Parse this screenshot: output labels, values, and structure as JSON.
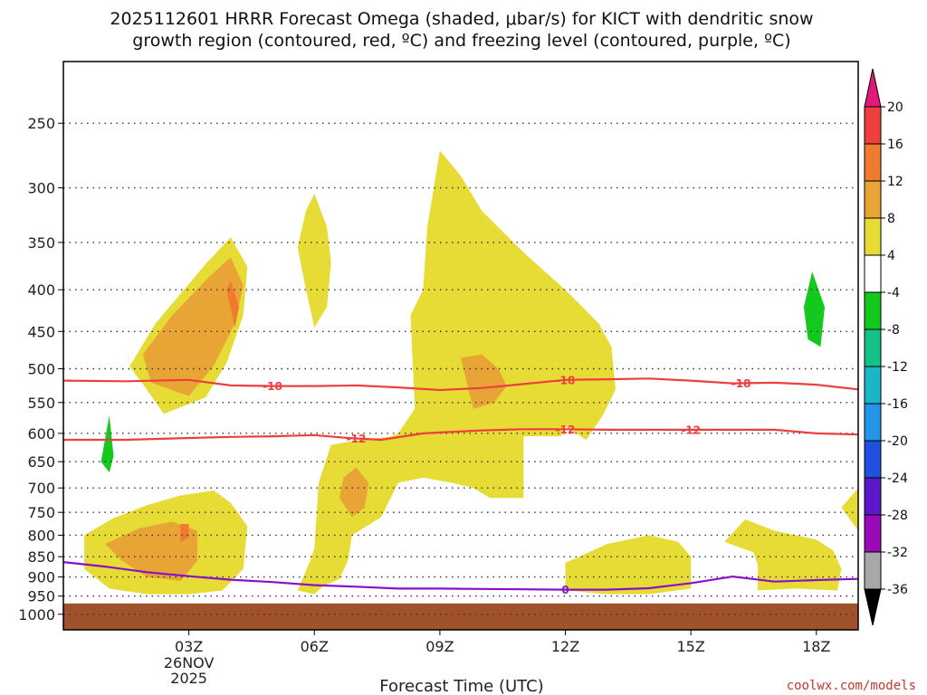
{
  "chart_data": {
    "type": "contour-timeheight",
    "title_line1": "2025112601 HRRR Forecast Omega (shaded, μbar/s) for KICT with dendritic snow",
    "title_line2": "growth region (contoured, red, ºC) and freezing level (contoured, purple, ºC)",
    "xlabel": "Forecast Time (UTC)",
    "credit": "coolwx.com/models",
    "x_range_hours": [
      0.0,
      19.0
    ],
    "x_ticks": [
      {
        "hour": 3,
        "label": "03Z",
        "sub1": "26NOV",
        "sub2": "2025"
      },
      {
        "hour": 6,
        "label": "06Z"
      },
      {
        "hour": 9,
        "label": "09Z"
      },
      {
        "hour": 12,
        "label": "12Z"
      },
      {
        "hour": 15,
        "label": "15Z"
      },
      {
        "hour": 18,
        "label": "18Z"
      }
    ],
    "y_ticks_hpa": [
      250,
      300,
      350,
      400,
      450,
      500,
      550,
      600,
      650,
      700,
      750,
      800,
      850,
      900,
      950,
      1000
    ],
    "surface_pressure_hpa": 970,
    "colorbar": {
      "levels": [
        20,
        16,
        12,
        8,
        4,
        -4,
        -8,
        -12,
        -16,
        -20,
        -24,
        -28,
        -32,
        -36
      ],
      "colors": [
        "#ee3f3f",
        "#f07a2e",
        "#e8a535",
        "#e6dc35",
        "#ffffff",
        "#14c81e",
        "#15c185",
        "#1bb4c8",
        "#2196e8",
        "#2050e0",
        "#5a18c8",
        "#9a0ab8",
        "#a8a8a8"
      ],
      "top_color": "#e0197b",
      "bottom_color": "#000000",
      "terrain_color": "#a0522d",
      "labels": [
        "20",
        "16",
        "12",
        "8",
        "4",
        "-4",
        "-8",
        "-12",
        "-16",
        "-20",
        "-24",
        "-28",
        "-32",
        "-36"
      ]
    },
    "contours": {
      "minus18": {
        "label": "-18",
        "color": "#ee3f3f",
        "hours": [
          0,
          1.5,
          3,
          4,
          5,
          6,
          7,
          8,
          9,
          10,
          11,
          12,
          13,
          14,
          15,
          16,
          17,
          18,
          19
        ],
        "hpa": [
          517,
          518,
          516,
          524,
          525,
          525,
          524,
          527,
          531,
          528,
          522,
          516,
          515,
          514,
          517,
          521,
          520,
          523,
          530
        ]
      },
      "minus12": {
        "label": "-12",
        "color": "#ee3f3f",
        "hours": [
          0,
          1.5,
          3,
          4,
          5,
          6,
          6.8,
          7.6,
          8.6,
          10,
          11,
          12,
          13,
          14,
          15,
          16,
          17,
          18,
          19
        ],
        "hpa": [
          611,
          611,
          608,
          606,
          605,
          603,
          608,
          611,
          600,
          595,
          593,
          593,
          594,
          594,
          594,
          594,
          594,
          600,
          602
        ]
      },
      "freezing": {
        "label": "0",
        "color": "#8a10c8",
        "hours": [
          0,
          1,
          2,
          3,
          4,
          5,
          6,
          7,
          8,
          9,
          10,
          11,
          12,
          13,
          14,
          15,
          16,
          17,
          18,
          19
        ],
        "hpa": [
          863,
          874,
          888,
          898,
          907,
          913,
          921,
          925,
          930,
          930,
          931,
          932,
          933,
          933,
          929,
          916,
          899,
          912,
          908,
          905
        ]
      }
    },
    "label_positions": {
      "minus18": [
        5.0,
        12.0,
        16.2
      ],
      "minus12": [
        7.0,
        12.0,
        15.0
      ],
      "freezing": [
        12.0
      ]
    },
    "shaded_regions": [
      {
        "level": "4 to 8",
        "hours": [
          1.6,
          2.2,
          3.4,
          4.0,
          4.4,
          4.3,
          3.9,
          3.4,
          2.4,
          1.9,
          1.6,
          1.5,
          1.6
        ],
        "hpa": [
          495,
          440,
          372,
          345,
          375,
          430,
          492,
          542,
          568,
          522,
          498,
          470,
          495
        ]
      },
      {
        "level": "8 to 12",
        "hours": [
          1.9,
          2.6,
          3.5,
          4.0,
          4.3,
          4.1,
          3.6,
          3.0,
          2.1,
          1.9
        ],
        "hpa": [
          480,
          430,
          385,
          365,
          395,
          440,
          495,
          540,
          520,
          480
        ]
      },
      {
        "level": "12 to 16",
        "hours": [
          3.9,
          4.0,
          4.2,
          4.1,
          3.9
        ],
        "hpa": [
          400,
          390,
          420,
          445,
          400
        ]
      },
      {
        "level": "4 to 8",
        "hours": [
          5.6,
          5.8,
          6.0,
          6.3,
          6.4,
          6.3,
          6.0,
          5.8,
          5.6
        ],
        "hpa": [
          355,
          320,
          305,
          335,
          370,
          420,
          445,
          400,
          355
        ]
      },
      {
        "level": "4 to 8",
        "hours": [
          8.7,
          9.0,
          9.5,
          10,
          11,
          12,
          12.8,
          13.1,
          13.2,
          12.9,
          12.5,
          12.0,
          11.9,
          11.0,
          11.0,
          10.2,
          9.8,
          9.3,
          8.6,
          8.0,
          7.6,
          6.9,
          6.8,
          6.6,
          6.2,
          6.0,
          5.6,
          5.9,
          6.0,
          6.1,
          6.4,
          7.0,
          7.8,
          8.0,
          8.4,
          8.3,
          8.6,
          8.7
        ],
        "hpa": [
          335,
          270,
          290,
          320,
          360,
          400,
          440,
          470,
          530,
          570,
          611,
          588,
          605,
          605,
          720,
          720,
          700,
          690,
          680,
          690,
          760,
          800,
          860,
          905,
          925,
          945,
          935,
          860,
          830,
          690,
          620,
          612,
          606,
          600,
          560,
          430,
          400,
          335
        ]
      },
      {
        "level": "8 to 12",
        "hours": [
          6.7,
          7.0,
          7.3,
          7.2,
          6.9,
          6.6,
          6.7
        ],
        "hpa": [
          680,
          660,
          690,
          740,
          760,
          720,
          680
        ]
      },
      {
        "level": "8 to 12",
        "hours": [
          9.5,
          10.0,
          10.4,
          10.6,
          10.3,
          9.8,
          9.5
        ],
        "hpa": [
          485,
          480,
          500,
          525,
          550,
          560,
          485
        ]
      },
      {
        "level": "4 to 8",
        "hours": [
          0.5,
          1.2,
          2.0,
          2.8,
          3.6,
          4.0,
          4.4,
          4.3,
          3.8,
          3.0,
          2.0,
          1.1,
          0.5,
          0.5
        ],
        "hpa": [
          800,
          762,
          735,
          715,
          705,
          730,
          780,
          880,
          935,
          945,
          945,
          930,
          880,
          800
        ]
      },
      {
        "level": "8 to 12",
        "hours": [
          1.0,
          1.8,
          2.6,
          3.2,
          3.2,
          2.8,
          2.0,
          1.4,
          1.0
        ],
        "hpa": [
          820,
          785,
          770,
          790,
          860,
          910,
          900,
          860,
          820
        ]
      },
      {
        "level": "12 to 16",
        "hours": [
          2.8,
          3.0,
          3.0,
          2.8,
          2.8
        ],
        "hpa": [
          775,
          775,
          805,
          815,
          775
        ]
      },
      {
        "level": "4 to 8",
        "hours": [
          12.0,
          13.0,
          14.0,
          14.7,
          15.0,
          15.0,
          14.0,
          13.0,
          12.0,
          12.0
        ],
        "hpa": [
          865,
          820,
          800,
          815,
          850,
          930,
          945,
          945,
          935,
          865
        ]
      },
      {
        "level": "4 to 8",
        "hours": [
          16.3,
          17.0,
          18.0,
          18.4,
          18.6,
          18.5,
          17.5,
          16.6,
          16.6,
          16.5,
          15.8,
          16.3
        ],
        "hpa": [
          765,
          790,
          810,
          835,
          880,
          935,
          930,
          935,
          870,
          840,
          815,
          765
        ]
      },
      {
        "level": "4 to 8",
        "hours": [
          18.6,
          19.0,
          19.0,
          18.6
        ],
        "hpa": [
          740,
          700,
          790,
          740
        ]
      },
      {
        "level": "-4 to -8",
        "hours": [
          17.7,
          17.9,
          18.2,
          18.1,
          17.8,
          17.7
        ],
        "hpa": [
          420,
          380,
          420,
          470,
          460,
          420
        ]
      },
      {
        "level": "-4 to -8",
        "hours": [
          0.9,
          1.1,
          1.2,
          1.1,
          0.9
        ],
        "hpa": [
          650,
          570,
          640,
          670,
          650
        ]
      }
    ]
  }
}
